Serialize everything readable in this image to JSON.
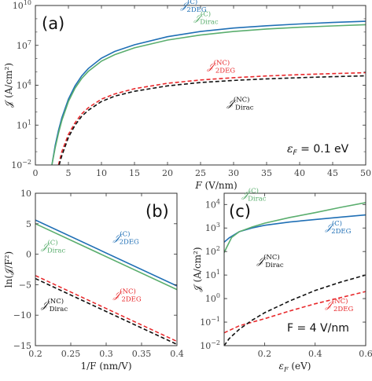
{
  "chart_data": [
    {
      "type": "line",
      "panel_label": "(a)",
      "xlabel": "F (V/nm)",
      "ylabel": "𝒥 (A/cm²)",
      "xlim": [
        0,
        50
      ],
      "ylim": [
        0.01,
        10000000000
      ],
      "yscale": "log",
      "xticks": [
        "0",
        "5",
        "10",
        "15",
        "20",
        "25",
        "30",
        "35",
        "40",
        "45",
        "50"
      ],
      "yticks": [
        {
          "value": 0.01,
          "base": "10",
          "exp": "−2"
        },
        {
          "value": 10,
          "base": "10",
          "exp": "1"
        },
        {
          "value": 10000,
          "base": "10",
          "exp": "4"
        },
        {
          "value": 10000000,
          "base": "10",
          "exp": "7"
        },
        {
          "value": 10000000000,
          "base": "10",
          "exp": "10"
        }
      ],
      "annotation": {
        "var": "ε",
        "sub": "F",
        "text": " = 0.1 eV"
      },
      "series": [
        {
          "name": "𝒥",
          "sub": "2DEG",
          "sup": "(C)",
          "color": "#1f6fb5",
          "dash": "solid",
          "x": [
            2.5,
            3,
            3.5,
            4,
            5,
            6,
            7,
            8,
            10,
            12,
            15,
            20,
            25,
            30,
            35,
            40,
            45,
            50
          ],
          "y": [
            0.01,
            0.3,
            4,
            35,
            900,
            9000,
            50000,
            180000,
            1100000,
            3500000,
            11000000,
            45000000,
            110000000,
            200000000,
            300000000,
            410000000,
            530000000,
            650000000
          ]
        },
        {
          "name": "𝒥",
          "sub": "Dirac",
          "sup": "(C)",
          "color": "#5aae6e",
          "dash": "solid",
          "x": [
            2.5,
            3,
            3.5,
            4,
            5,
            6,
            7,
            8,
            10,
            12,
            15,
            20,
            25,
            30,
            35,
            40,
            45,
            50
          ],
          "y": [
            0.01,
            0.2,
            2.5,
            22,
            600,
            6000,
            32000,
            110000,
            650000,
            2000000,
            6500000,
            25000000,
            60000000,
            110000000,
            170000000,
            230000000,
            290000000,
            360000000
          ]
        },
        {
          "name": "𝒥",
          "sub": "2DEG",
          "sup": "(NC)",
          "color": "#e8282b",
          "dash": "dashed",
          "x": [
            3.5,
            4,
            5,
            6,
            7,
            8,
            10,
            12,
            15,
            20,
            25,
            30,
            35,
            40,
            45,
            50
          ],
          "y": [
            0.01,
            0.1,
            2,
            15,
            70,
            200,
            900,
            2200,
            5500,
            14000,
            25000,
            37000,
            50000,
            63000,
            75000,
            88000
          ]
        },
        {
          "name": "𝒥",
          "sub": "Dirac",
          "sup": "(NC)",
          "color": "#111111",
          "dash": "dashed",
          "x": [
            3.6,
            4,
            5,
            6,
            7,
            8,
            10,
            12,
            15,
            20,
            25,
            30,
            35,
            40,
            45,
            50
          ],
          "y": [
            0.01,
            0.05,
            1.2,
            10,
            45,
            130,
            600,
            1500,
            3500,
            9000,
            16000,
            23000,
            30000,
            37000,
            44000,
            51000
          ]
        }
      ],
      "series_labels": [
        {
          "series": 0,
          "anchor": [
            22,
            6000000000
          ]
        },
        {
          "series": 1,
          "anchor": [
            24,
            700000000
          ]
        },
        {
          "series": 2,
          "anchor": [
            26,
            150000
          ]
        },
        {
          "series": 3,
          "anchor": [
            29,
            250
          ]
        }
      ]
    },
    {
      "type": "line",
      "panel_label": "(b)",
      "xlabel": "1/F (nm/V)",
      "ylabel": "ln(𝒥/F²)",
      "xlim": [
        0.2,
        0.4
      ],
      "ylim": [
        -15,
        10
      ],
      "xticks": [
        "0.2",
        "0.25",
        "0.3",
        "0.35",
        "0.4"
      ],
      "yticks": [
        "−15",
        "−10",
        "−5",
        "0",
        "5",
        "10"
      ],
      "series": [
        {
          "name": "𝒥",
          "sub": "2DEG",
          "sup": "(C)",
          "color": "#1f6fb5",
          "dash": "solid",
          "x": [
            0.2,
            0.4
          ],
          "y": [
            5.6,
            -5.2
          ]
        },
        {
          "name": "𝒥",
          "sub": "Dirac",
          "sup": "(C)",
          "color": "#5aae6e",
          "dash": "solid",
          "x": [
            0.2,
            0.4
          ],
          "y": [
            5.0,
            -5.8
          ]
        },
        {
          "name": "𝒥",
          "sub": "2DEG",
          "sup": "(NC)",
          "color": "#e8282b",
          "dash": "dashed",
          "x": [
            0.2,
            0.4
          ],
          "y": [
            -3.5,
            -14.3
          ]
        },
        {
          "name": "𝒥",
          "sub": "Dirac",
          "sup": "(NC)",
          "color": "#111111",
          "dash": "dashed",
          "x": [
            0.2,
            0.4
          ],
          "y": [
            -4.0,
            -14.8
          ]
        }
      ],
      "series_labels": [
        {
          "series": 0,
          "anchor": [
            0.31,
            2.2
          ]
        },
        {
          "series": 1,
          "anchor": [
            0.208,
            0.8
          ]
        },
        {
          "series": 2,
          "anchor": [
            0.31,
            -7.2
          ]
        },
        {
          "series": 3,
          "anchor": [
            0.208,
            -8.8
          ]
        }
      ]
    },
    {
      "type": "line",
      "panel_label": "(c)",
      "xlabel": "ε_F (eV)",
      "ylabel": "𝒥 (A/cm²)",
      "xlim": [
        0.04,
        0.6
      ],
      "ylim": [
        0.01,
        30000
      ],
      "yscale": "log",
      "xticks": [
        "0.2",
        "0.4",
        "0.6"
      ],
      "yticks": [
        {
          "value": 0.01,
          "base": "10",
          "exp": "−2"
        },
        {
          "value": 0.1,
          "base": "10",
          "exp": "−1"
        },
        {
          "value": 1,
          "base": "10",
          "exp": "0"
        },
        {
          "value": 10,
          "base": "10",
          "exp": "1"
        },
        {
          "value": 100,
          "base": "10",
          "exp": "2"
        },
        {
          "value": 1000,
          "base": "10",
          "exp": "3"
        },
        {
          "value": 10000,
          "base": "10",
          "exp": "4"
        }
      ],
      "annotation": {
        "text": "F = 4 V/nm"
      },
      "series": [
        {
          "name": "𝒥",
          "sub": "2DEG",
          "sup": "(C)",
          "color": "#1f6fb5",
          "dash": "solid",
          "x": [
            0.04,
            0.06,
            0.1,
            0.15,
            0.2,
            0.3,
            0.4,
            0.5,
            0.6
          ],
          "y": [
            250,
            380,
            700,
            1000,
            1300,
            1800,
            2300,
            2900,
            3600
          ]
        },
        {
          "name": "𝒥",
          "sub": "Dirac",
          "sup": "(C)",
          "color": "#5aae6e",
          "dash": "solid",
          "x": [
            0.04,
            0.05,
            0.07,
            0.1,
            0.15,
            0.2,
            0.3,
            0.4,
            0.5,
            0.6
          ],
          "y": [
            90,
            150,
            400,
            700,
            1100,
            1600,
            2800,
            4500,
            7500,
            12000
          ]
        },
        {
          "name": "𝒥",
          "sub": "2DEG",
          "sup": "(NC)",
          "color": "#e8282b",
          "dash": "dashed",
          "x": [
            0.04,
            0.1,
            0.2,
            0.3,
            0.4,
            0.5,
            0.6
          ],
          "y": [
            0.035,
            0.07,
            0.14,
            0.3,
            0.6,
            1.1,
            2.0
          ]
        },
        {
          "name": "𝒥",
          "sub": "Dirac",
          "sup": "(NC)",
          "color": "#111111",
          "dash": "dashed",
          "x": [
            0.04,
            0.06,
            0.1,
            0.15,
            0.2,
            0.3,
            0.4,
            0.5,
            0.6
          ],
          "y": [
            0.01,
            0.02,
            0.05,
            0.12,
            0.25,
            0.8,
            2.2,
            5.0,
            10.0
          ]
        }
      ],
      "series_labels": [
        {
          "series": 1,
          "anchor": [
            0.11,
            20000
          ]
        },
        {
          "series": 0,
          "anchor": [
            0.44,
            800
          ]
        },
        {
          "series": 3,
          "anchor": [
            0.17,
            30
          ]
        },
        {
          "series": 2,
          "anchor": [
            0.44,
            0.4
          ]
        }
      ]
    }
  ]
}
